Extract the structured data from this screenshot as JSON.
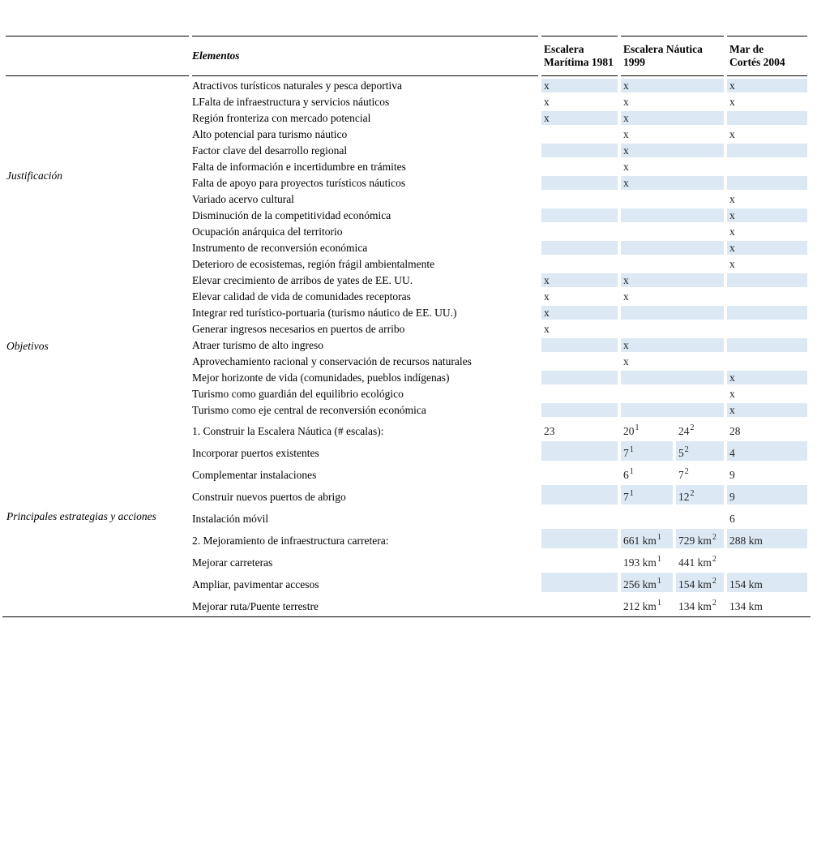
{
  "colors": {
    "row_shade": "#dce9f5",
    "rule": "#000000",
    "page_background": "#ffffff"
  },
  "table": {
    "columns": {
      "elementos_label": "Elementos",
      "escalera_maritima": "Escalera Marítima 1981",
      "escalera_nautica": "Escalera Náutica 1999",
      "mar_de_cortes": "Mar de Cortés 2004"
    },
    "sections": [
      {
        "label": "Justificación",
        "rows": [
          {
            "elemento": "Atractivos turísticos naturales y pesca deportiva",
            "em": "x",
            "en": "x",
            "mc": "x"
          },
          {
            "elemento": "LFalta de infraestructura y servicios náuticos",
            "em": "x",
            "en": "x",
            "mc": "x"
          },
          {
            "elemento": "Región fronteriza con mercado potencial",
            "em": "x",
            "en": "x",
            "mc": ""
          },
          {
            "elemento": "Alto potencial para turismo náutico",
            "em": "",
            "en": "x",
            "mc": "x"
          },
          {
            "elemento": "Factor clave del desarrollo regional",
            "em": "",
            "en": "x",
            "mc": ""
          },
          {
            "elemento": "Falta de información e incertidumbre en trámites",
            "em": "",
            "en": "x",
            "mc": ""
          },
          {
            "elemento": "Falta de apoyo para proyectos turísticos náuticos",
            "em": "",
            "en": "x",
            "mc": ""
          },
          {
            "elemento": "Variado acervo cultural",
            "em": "",
            "en": "",
            "mc": "x"
          },
          {
            "elemento": "Disminución de la competitividad económica",
            "em": "",
            "en": "",
            "mc": "x"
          },
          {
            "elemento": "Ocupación anárquica del territorio",
            "em": "",
            "en": "",
            "mc": "x"
          },
          {
            "elemento": "Instrumento de reconversión económica",
            "em": "",
            "en": "",
            "mc": "x"
          },
          {
            "elemento": "Deterioro de ecosistemas, región frágil ambientalmente",
            "em": "",
            "en": "",
            "mc": "x"
          }
        ]
      },
      {
        "label": "Objetivos",
        "rows": [
          {
            "elemento": "Elevar crecimiento de arribos de yates de EE. UU.",
            "em": "x",
            "en": "x",
            "mc": ""
          },
          {
            "elemento": "Elevar calidad de vida de comunidades receptoras",
            "em": "x",
            "en": "x",
            "mc": ""
          },
          {
            "elemento": "Integrar red turístico-portuaria (turismo náutico de EE. UU.)",
            "em": "x",
            "en": "",
            "mc": ""
          },
          {
            "elemento": "Generar ingresos necesarios en puertos de arribo",
            "em": "x",
            "en": "",
            "mc": ""
          },
          {
            "elemento": "Atraer turismo de alto ingreso",
            "em": "",
            "en": "x",
            "mc": ""
          },
          {
            "elemento": "Aprovechamiento racional y conservación de recursos naturales",
            "em": "",
            "en": "x",
            "mc": ""
          },
          {
            "elemento": "Mejor horizonte de vida (comunidades, pueblos indígenas)",
            "em": "",
            "en": "",
            "mc": "x"
          },
          {
            "elemento": "Turismo como guardián del equilibrio ecológico",
            "em": "",
            "en": "",
            "mc": "x"
          },
          {
            "elemento": "Turismo como eje central de reconversión económica",
            "em": "",
            "en": "",
            "mc": "x"
          }
        ]
      },
      {
        "label": "Principales estrategias y acciones",
        "split_en": true,
        "rows": [
          {
            "elemento": "1. Construir la Escalera Náutica (# escalas):",
            "em": "23",
            "en1": {
              "v": "20",
              "sup": "1"
            },
            "en2": {
              "v": "24",
              "sup": "2"
            },
            "mc": "28"
          },
          {
            "elemento": "Incorporar puertos existentes",
            "em": "",
            "en1": {
              "v": "7",
              "sup": "1"
            },
            "en2": {
              "v": "5",
              "sup": "2"
            },
            "mc": "4"
          },
          {
            "elemento": "Complementar instalaciones",
            "em": "",
            "en1": {
              "v": "6",
              "sup": "1"
            },
            "en2": {
              "v": "7",
              "sup": "2"
            },
            "mc": "9"
          },
          {
            "elemento": "Construir nuevos puertos de abrigo",
            "em": "",
            "en1": {
              "v": "7",
              "sup": "1"
            },
            "en2": {
              "v": "12",
              "sup": "2"
            },
            "mc": "9"
          },
          {
            "elemento": "Instalación móvil",
            "em": "",
            "en1": "",
            "en2": "",
            "mc": "6"
          },
          {
            "elemento": "2. Mejoramiento de infraestructura carretera:",
            "em": "",
            "en1": {
              "v": "661 km",
              "sup": "1"
            },
            "en2": {
              "v": "729 km",
              "sup": "2"
            },
            "mc": "288 km"
          },
          {
            "elemento": "Mejorar carreteras",
            "em": "",
            "en1": {
              "v": "193 km",
              "sup": "1"
            },
            "en2": {
              "v": "441 km",
              "sup": "2"
            },
            "mc": ""
          },
          {
            "elemento": "Ampliar, pavimentar accesos",
            "em": "",
            "en1": {
              "v": "256 km",
              "sup": "1"
            },
            "en2": {
              "v": "154 km",
              "sup": "2"
            },
            "mc": "154 km"
          },
          {
            "elemento": "Mejorar ruta/Puente terrestre",
            "em": "",
            "en1": {
              "v": "212 km",
              "sup": "1"
            },
            "en2": {
              "v": "134 km",
              "sup": "2"
            },
            "mc": "134 km"
          }
        ]
      }
    ]
  }
}
